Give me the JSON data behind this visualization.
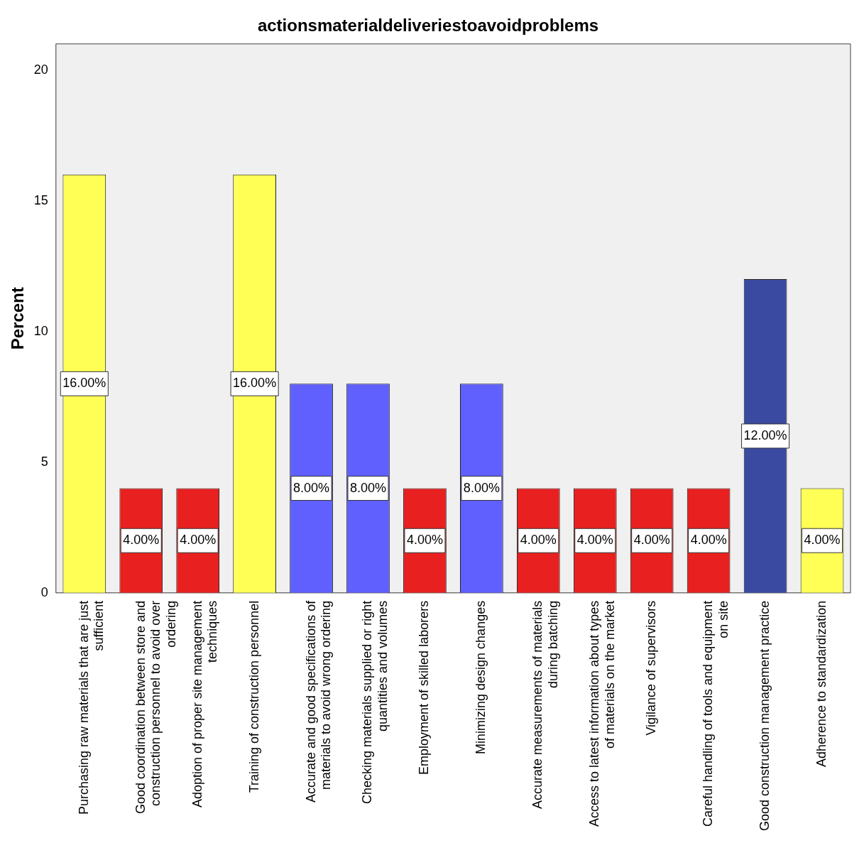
{
  "chart_data": {
    "type": "bar",
    "title": "actionsmaterialdeliveriestoavoidproblems",
    "ylabel": "Percent",
    "categories": [
      "Purchasing raw materials that are just sufficient",
      "Good coordination between store and construction personnel to avoid over ordering",
      "Adoption of proper site management techniques",
      "Training of construction personnel",
      "Accurate and good specifications of materials to avoid wrong ordering",
      "Checking materials supplied or right quantities and volumes",
      "Employment of skilled laborers",
      "Minimizing design changes",
      "Accurate measurements of materials during batching",
      "Access to latest information about types of materials on the market",
      "Vigilance of supervisors",
      "Careful handling of tools and equipment on site",
      "Good construction management practice",
      "Adherence to standardization"
    ],
    "values": [
      16,
      4,
      4,
      16,
      8,
      8,
      4,
      8,
      4,
      4,
      4,
      4,
      12,
      4
    ],
    "colors": [
      "#ffff55",
      "#e82020",
      "#e82020",
      "#ffff55",
      "#6060ff",
      "#6060ff",
      "#e82020",
      "#6060ff",
      "#e82020",
      "#e82020",
      "#e82020",
      "#e82020",
      "#3a4aa0",
      "#ffff55"
    ],
    "value_labels": [
      "16.00%",
      "4.00%",
      "4.00%",
      "16.00%",
      "8.00%",
      "8.00%",
      "4.00%",
      "8.00%",
      "4.00%",
      "4.00%",
      "4.00%",
      "4.00%",
      "12.00%",
      "4.00%"
    ],
    "ylim": [
      0,
      21
    ],
    "yticks": [
      0,
      5,
      10,
      15,
      20
    ],
    "grid": false,
    "legend": false
  }
}
